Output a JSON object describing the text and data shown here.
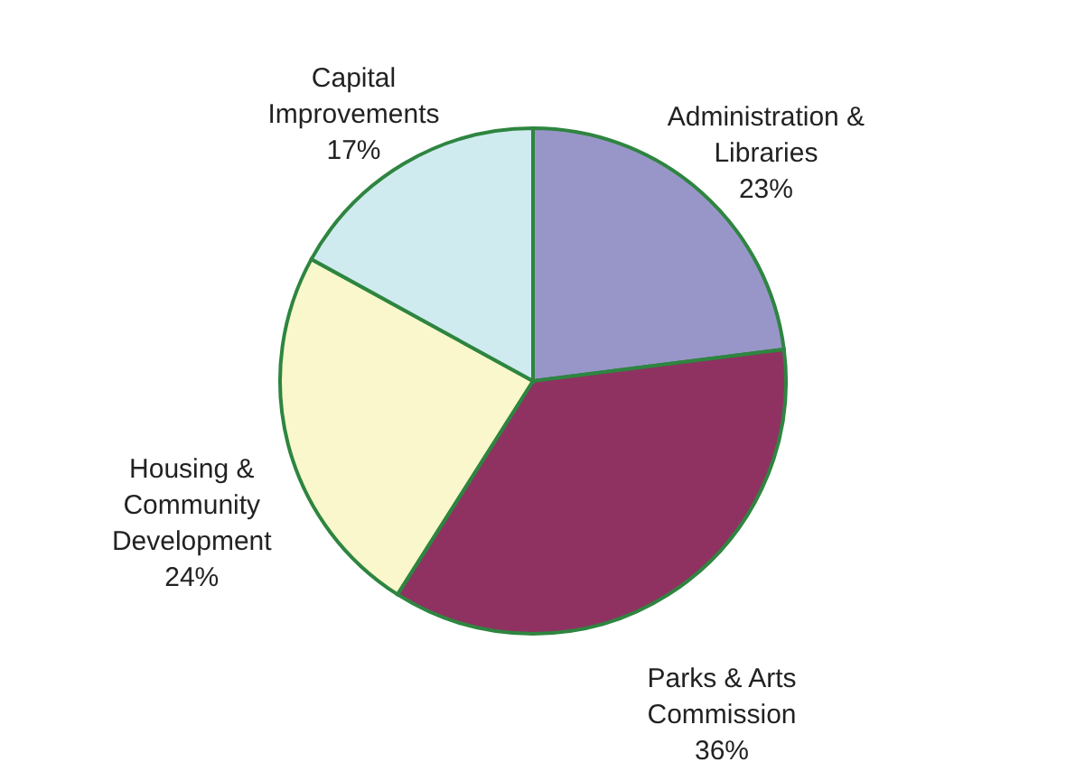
{
  "chart_data": {
    "type": "pie",
    "categories": [
      "Administration & Libraries",
      "Parks & Arts Commission",
      "Housing & Community Development",
      "Capital Improvements"
    ],
    "values": [
      23,
      36,
      24,
      17
    ],
    "colors": [
      "#9896c8",
      "#8f3262",
      "#f9f7cb",
      "#d0ebef"
    ],
    "value_labels": [
      "23%",
      "36%",
      "24%",
      "17%"
    ]
  }
}
